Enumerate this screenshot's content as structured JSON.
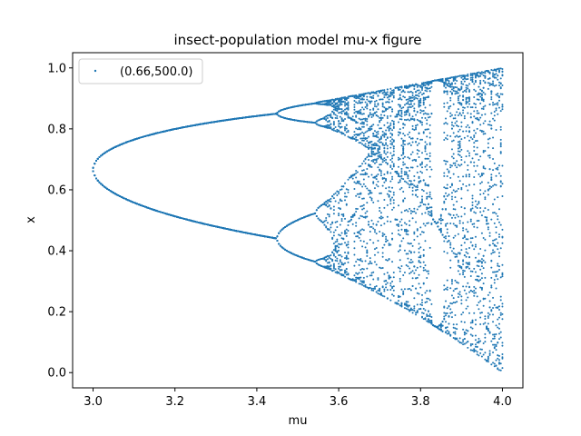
{
  "chart_data": {
    "type": "scatter",
    "title": "insect-population model mu-x figure",
    "xlabel": "mu",
    "ylabel": "x",
    "xlim": [
      2.95,
      4.05
    ],
    "ylim": [
      -0.05,
      1.05
    ],
    "xticks": [
      "3.0",
      "3.2",
      "3.4",
      "3.6",
      "3.8",
      "4.0"
    ],
    "yticks": [
      "0.0",
      "0.2",
      "0.4",
      "0.6",
      "0.8",
      "1.0"
    ],
    "grid": false,
    "legend": {
      "placement": "top-left",
      "entries": [
        "(0.66,500.0)"
      ]
    },
    "series": [
      {
        "name": "(0.66,500.0)",
        "color": "#1f77b4",
        "marker": "point",
        "x_range": [
          3.0,
          4.0
        ],
        "points": [
          [
            3.0,
            0.659
          ],
          [
            3.02,
            0.63
          ],
          [
            3.05,
            0.61
          ],
          [
            3.1,
            0.585
          ],
          [
            3.15,
            0.56
          ],
          [
            3.2,
            0.535
          ],
          [
            3.25,
            0.515
          ],
          [
            3.3,
            0.495
          ],
          [
            3.35,
            0.475
          ],
          [
            3.4,
            0.46
          ],
          [
            3.45,
            0.44
          ],
          [
            3.46,
            0.455
          ],
          [
            3.48,
            0.48
          ],
          [
            3.5,
            0.495
          ],
          [
            3.52,
            0.51
          ],
          [
            3.54,
            0.52
          ],
          [
            3.545,
            0.365
          ],
          [
            3.56,
            0.36
          ],
          [
            3.58,
            0.35
          ],
          [
            3.6,
            0.34
          ],
          [
            3.62,
            0.33
          ],
          [
            3.65,
            0.32
          ],
          [
            3.68,
            0.3
          ],
          [
            3.7,
            0.29
          ],
          [
            3.75,
            0.27
          ],
          [
            3.8,
            0.24
          ],
          [
            3.83,
            0.22
          ],
          [
            3.85,
            0.15
          ],
          [
            3.9,
            0.11
          ],
          [
            3.95,
            0.06
          ],
          [
            4.0,
            0.01
          ],
          [
            3.6,
            0.59
          ],
          [
            3.65,
            0.68
          ],
          [
            3.68,
            0.92
          ],
          [
            3.7,
            0.92
          ],
          [
            3.75,
            0.93
          ],
          [
            3.8,
            0.945
          ],
          [
            3.83,
            0.955
          ],
          [
            3.85,
            0.96
          ],
          [
            3.9,
            0.975
          ],
          [
            3.95,
            0.99
          ],
          [
            4.0,
            0.999
          ]
        ]
      }
    ]
  }
}
